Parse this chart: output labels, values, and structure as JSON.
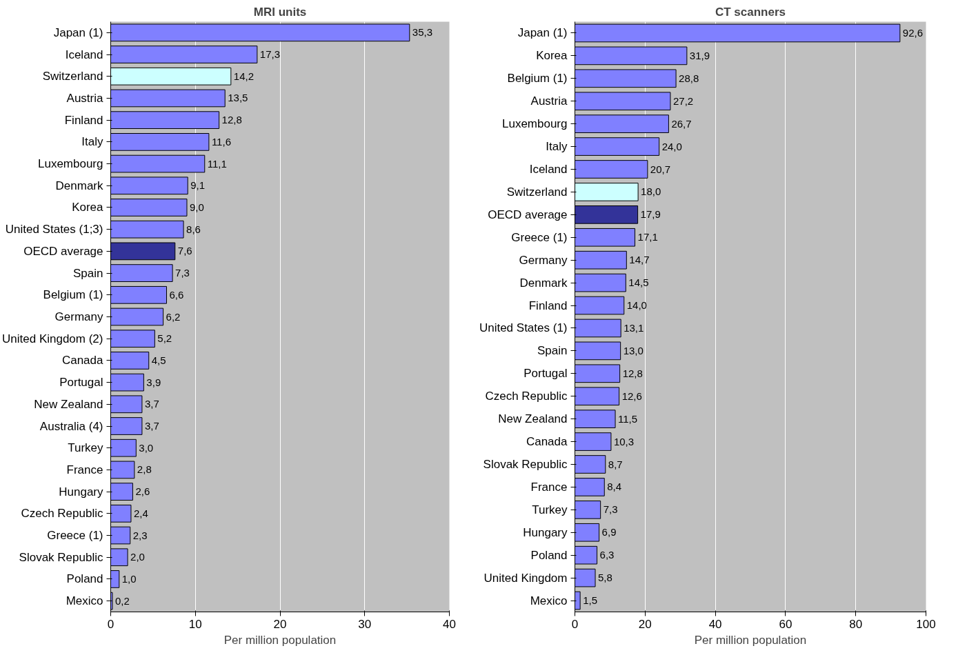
{
  "chart_data": [
    {
      "type": "bar",
      "title": "MRI units",
      "xlabel": "Per million population",
      "orientation": "horizontal",
      "categories": [
        "Japan (1)",
        "Iceland",
        "Switzerland",
        "Austria",
        "Finland",
        "Italy",
        "Luxembourg",
        "Denmark",
        "Korea",
        "United States (1;3)",
        "OECD average",
        "Spain",
        "Belgium (1)",
        "Germany",
        "United Kingdom (2)",
        "Canada",
        "Portugal",
        "New Zealand",
        "Australia (4)",
        "Turkey",
        "France",
        "Hungary",
        "Czech Republic",
        "Greece (1)",
        "Slovak Republic",
        "Poland",
        "Mexico"
      ],
      "values": [
        35.3,
        17.3,
        14.2,
        13.5,
        12.8,
        11.6,
        11.1,
        9.1,
        9.0,
        8.6,
        7.6,
        7.3,
        6.6,
        6.2,
        5.2,
        4.5,
        3.9,
        3.7,
        3.7,
        3.0,
        2.8,
        2.6,
        2.4,
        2.3,
        2.0,
        1.0,
        0.2
      ],
      "value_labels": [
        "35,3",
        "17,3",
        "14,2",
        "13,5",
        "12,8",
        "11,6",
        "11,1",
        "9,1",
        "9,0",
        "8,6",
        "7,6",
        "7,3",
        "6,6",
        "6,2",
        "5,2",
        "4,5",
        "3,9",
        "3,7",
        "3,7",
        "3,0",
        "2,8",
        "2,6",
        "2,4",
        "2,3",
        "2,0",
        "1,0",
        "0,2"
      ],
      "colors": [
        "#8080ff",
        "#8080ff",
        "#ccffff",
        "#8080ff",
        "#8080ff",
        "#8080ff",
        "#8080ff",
        "#8080ff",
        "#8080ff",
        "#8080ff",
        "#333399",
        "#8080ff",
        "#8080ff",
        "#8080ff",
        "#8080ff",
        "#8080ff",
        "#8080ff",
        "#8080ff",
        "#8080ff",
        "#8080ff",
        "#8080ff",
        "#8080ff",
        "#8080ff",
        "#8080ff",
        "#8080ff",
        "#8080ff",
        "#8080ff"
      ],
      "xlim": [
        0,
        40
      ],
      "xticks": [
        0,
        10,
        20,
        30,
        40
      ],
      "grid": "x"
    },
    {
      "type": "bar",
      "title": "CT scanners",
      "xlabel": "Per million population",
      "orientation": "horizontal",
      "categories": [
        "Japan (1)",
        "Korea",
        "Belgium (1)",
        "Austria",
        "Luxembourg",
        "Italy",
        "Iceland",
        "Switzerland",
        "OECD average",
        "Greece (1)",
        "Germany",
        "Denmark",
        "Finland",
        "United States (1)",
        "Spain",
        "Portugal",
        "Czech Republic",
        "New Zealand",
        "Canada",
        "Slovak Republic",
        "France",
        "Turkey",
        "Hungary",
        "Poland",
        "United Kingdom",
        "Mexico"
      ],
      "values": [
        92.6,
        31.9,
        28.8,
        27.2,
        26.7,
        24.0,
        20.7,
        18.0,
        17.9,
        17.1,
        14.7,
        14.5,
        14.0,
        13.1,
        13.0,
        12.8,
        12.6,
        11.5,
        10.3,
        8.7,
        8.4,
        7.3,
        6.9,
        6.3,
        5.8,
        1.5
      ],
      "value_labels": [
        "92,6",
        "31,9",
        "28,8",
        "27,2",
        "26,7",
        "24,0",
        "20,7",
        "18,0",
        "17,9",
        "17,1",
        "14,7",
        "14,5",
        "14,0",
        "13,1",
        "13,0",
        "12,8",
        "12,6",
        "11,5",
        "10,3",
        "8,7",
        "8,4",
        "7,3",
        "6,9",
        "6,3",
        "5,8",
        "1,5"
      ],
      "colors": [
        "#8080ff",
        "#8080ff",
        "#8080ff",
        "#8080ff",
        "#8080ff",
        "#8080ff",
        "#8080ff",
        "#ccffff",
        "#333399",
        "#8080ff",
        "#8080ff",
        "#8080ff",
        "#8080ff",
        "#8080ff",
        "#8080ff",
        "#8080ff",
        "#8080ff",
        "#8080ff",
        "#8080ff",
        "#8080ff",
        "#8080ff",
        "#8080ff",
        "#8080ff",
        "#8080ff",
        "#8080ff",
        "#8080ff"
      ],
      "xlim": [
        0,
        100
      ],
      "xticks": [
        0,
        20,
        40,
        60,
        80,
        100
      ],
      "grid": "x"
    }
  ]
}
